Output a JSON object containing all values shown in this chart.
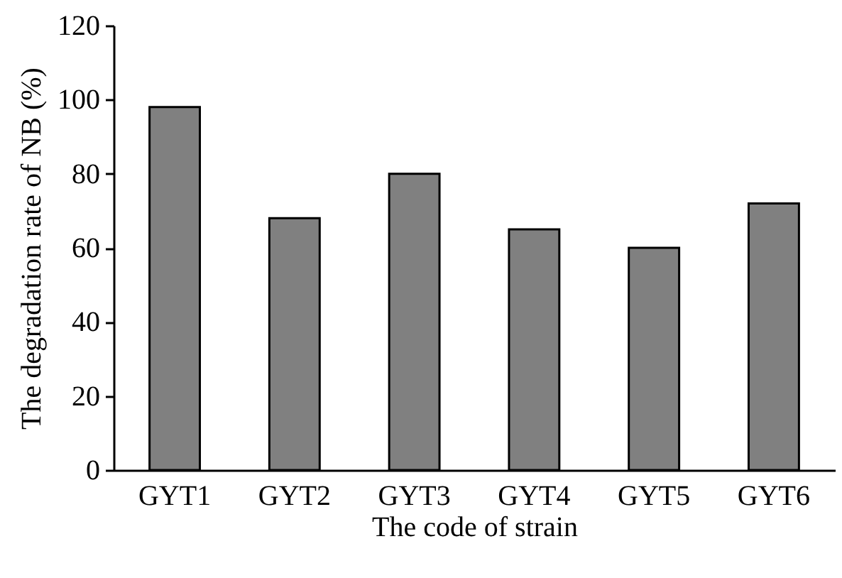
{
  "chart_data": {
    "type": "bar",
    "xlabel": "The code of strain",
    "ylabel": "The degradation rate of NB (%)",
    "categories": [
      "GYT1",
      "GYT2",
      "GYT3",
      "GYT4",
      "GYT5",
      "GYT6"
    ],
    "values": [
      98,
      68,
      80,
      65,
      60,
      72
    ],
    "color": "#808080",
    "ylim": [
      0,
      120
    ],
    "yticks": [
      0,
      20,
      40,
      60,
      80,
      100,
      120
    ],
    "grid": false
  }
}
